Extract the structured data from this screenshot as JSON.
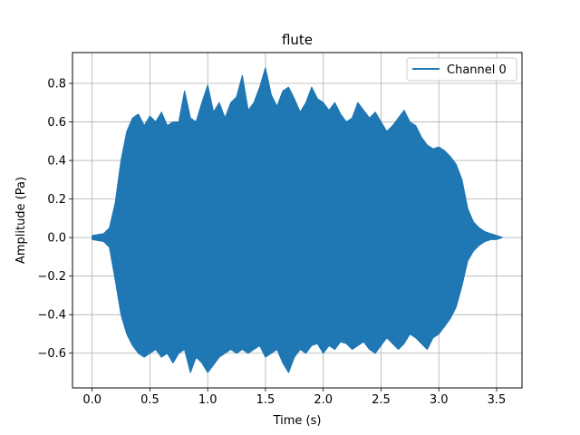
{
  "chart_data": {
    "type": "line",
    "title": "flute",
    "xlabel": "Time (s)",
    "ylabel": "Amplitude (Pa)",
    "xlim": [
      -0.17,
      3.72
    ],
    "ylim": [
      -0.78,
      0.96
    ],
    "x_ticks": [
      0.0,
      0.5,
      1.0,
      1.5,
      2.0,
      2.5,
      3.0,
      3.5
    ],
    "x_tick_labels": [
      "0.0",
      "0.5",
      "1.0",
      "1.5",
      "2.0",
      "2.5",
      "3.0",
      "3.5"
    ],
    "y_ticks": [
      -0.6,
      -0.4,
      -0.2,
      0.0,
      0.2,
      0.4,
      0.6,
      0.8
    ],
    "y_tick_labels": [
      "−0.6",
      "−0.4",
      "−0.2",
      "0.0",
      "0.2",
      "0.4",
      "0.6",
      "0.8"
    ],
    "grid": true,
    "legend_position": "top-right",
    "series": [
      {
        "name": "Channel 0",
        "color": "#1f77b4",
        "envelope": {
          "time": [
            0.0,
            0.1,
            0.15,
            0.2,
            0.25,
            0.3,
            0.35,
            0.4,
            0.45,
            0.5,
            0.55,
            0.6,
            0.65,
            0.7,
            0.75,
            0.8,
            0.85,
            0.9,
            0.95,
            1.0,
            1.05,
            1.1,
            1.15,
            1.2,
            1.25,
            1.3,
            1.35,
            1.4,
            1.45,
            1.5,
            1.55,
            1.6,
            1.65,
            1.7,
            1.75,
            1.8,
            1.85,
            1.9,
            1.95,
            2.0,
            2.05,
            2.1,
            2.15,
            2.2,
            2.25,
            2.3,
            2.35,
            2.4,
            2.45,
            2.5,
            2.55,
            2.6,
            2.65,
            2.7,
            2.75,
            2.8,
            2.85,
            2.9,
            2.95,
            3.0,
            3.05,
            3.1,
            3.15,
            3.2,
            3.25,
            3.3,
            3.35,
            3.4,
            3.45,
            3.5,
            3.55
          ],
          "max": [
            0.01,
            0.02,
            0.05,
            0.18,
            0.4,
            0.55,
            0.62,
            0.64,
            0.58,
            0.63,
            0.6,
            0.65,
            0.58,
            0.6,
            0.6,
            0.76,
            0.62,
            0.6,
            0.7,
            0.79,
            0.65,
            0.7,
            0.62,
            0.7,
            0.73,
            0.84,
            0.66,
            0.7,
            0.78,
            0.88,
            0.74,
            0.68,
            0.76,
            0.78,
            0.72,
            0.65,
            0.7,
            0.78,
            0.72,
            0.7,
            0.66,
            0.7,
            0.64,
            0.6,
            0.62,
            0.7,
            0.66,
            0.62,
            0.65,
            0.6,
            0.55,
            0.58,
            0.62,
            0.66,
            0.6,
            0.58,
            0.52,
            0.48,
            0.46,
            0.47,
            0.45,
            0.42,
            0.38,
            0.3,
            0.15,
            0.08,
            0.05,
            0.03,
            0.02,
            0.01,
            0.0
          ],
          "min": [
            -0.01,
            -0.02,
            -0.05,
            -0.22,
            -0.4,
            -0.5,
            -0.56,
            -0.6,
            -0.62,
            -0.6,
            -0.58,
            -0.62,
            -0.6,
            -0.65,
            -0.6,
            -0.58,
            -0.7,
            -0.62,
            -0.65,
            -0.7,
            -0.66,
            -0.62,
            -0.6,
            -0.58,
            -0.6,
            -0.58,
            -0.6,
            -0.58,
            -0.56,
            -0.62,
            -0.6,
            -0.58,
            -0.65,
            -0.7,
            -0.62,
            -0.58,
            -0.6,
            -0.56,
            -0.55,
            -0.6,
            -0.56,
            -0.58,
            -0.54,
            -0.55,
            -0.58,
            -0.56,
            -0.54,
            -0.58,
            -0.6,
            -0.56,
            -0.52,
            -0.55,
            -0.58,
            -0.55,
            -0.5,
            -0.52,
            -0.55,
            -0.58,
            -0.52,
            -0.5,
            -0.46,
            -0.42,
            -0.36,
            -0.25,
            -0.12,
            -0.07,
            -0.04,
            -0.02,
            -0.01,
            -0.01,
            0.0
          ]
        }
      }
    ]
  }
}
